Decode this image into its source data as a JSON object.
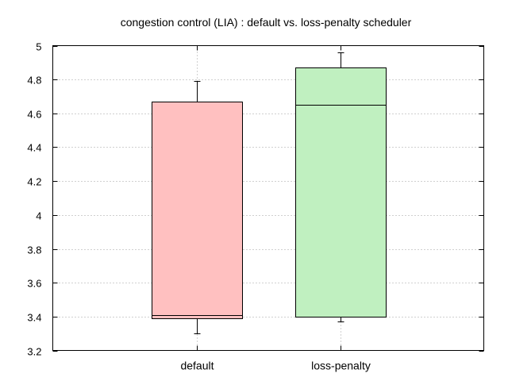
{
  "chart_data": {
    "type": "boxplot",
    "title": "congestion control (LIA) : default vs. loss-penalty scheduler",
    "xlabel": "",
    "ylabel": "",
    "ylim": [
      3.2,
      5.0
    ],
    "yticks": [
      3.2,
      3.4,
      3.6,
      3.8,
      4.0,
      4.2,
      4.4,
      4.6,
      4.8,
      5.0
    ],
    "ytick_labels": [
      "3.2",
      "3.4",
      "3.6",
      "3.8",
      "4",
      "4.2",
      "4.4",
      "4.6",
      "4.8",
      "5"
    ],
    "grid": true,
    "categories": [
      "default",
      "loss-penalty"
    ],
    "boxes": [
      {
        "label": "default",
        "whisker_low": 3.3,
        "q1": 3.39,
        "median": 3.41,
        "q3": 4.67,
        "whisker_high": 4.79,
        "color": "#ffc0c0"
      },
      {
        "label": "loss-penalty",
        "whisker_low": 3.37,
        "q1": 3.4,
        "median": 4.65,
        "q3": 4.87,
        "whisker_high": 4.96,
        "color": "#c0f0c0"
      }
    ]
  }
}
